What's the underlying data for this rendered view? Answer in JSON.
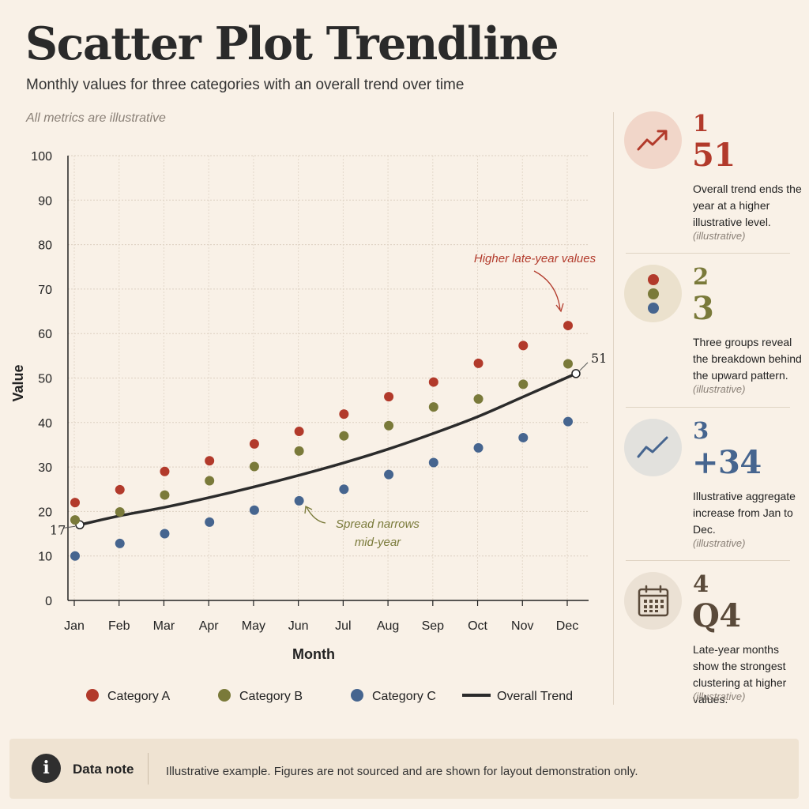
{
  "header": {
    "title": "Scatter Plot Trendline",
    "subtitle": "Monthly values for three categories with an overall trend over time",
    "note": "All metrics are illustrative"
  },
  "chart_data": {
    "type": "scatter",
    "xlabel": "Month",
    "ylabel": "Value",
    "categories": [
      "Jan",
      "Feb",
      "Mar",
      "Apr",
      "May",
      "Jun",
      "Jul",
      "Aug",
      "Sep",
      "Oct",
      "Nov",
      "Dec"
    ],
    "ylim": [
      0,
      100
    ],
    "yticks": [
      "0",
      "10",
      "20",
      "30",
      "40",
      "50",
      "60",
      "70",
      "80",
      "90",
      "100"
    ],
    "grid": true,
    "legend_position": "bottom",
    "series": [
      {
        "name": "Category A",
        "kind": "points",
        "color": "#b23a2b",
        "values": [
          22,
          24.9,
          29,
          31.4,
          35.2,
          38,
          41.9,
          45.8,
          49.1,
          53.3,
          57.3,
          61.8
        ]
      },
      {
        "name": "Category B",
        "kind": "points",
        "color": "#7a7a3a",
        "values": [
          18.1,
          19.9,
          23.7,
          26.9,
          30.1,
          33.6,
          37,
          39.3,
          43.5,
          45.3,
          48.6,
          53.2
        ]
      },
      {
        "name": "Category C",
        "kind": "points",
        "color": "#46658f",
        "values": [
          10,
          12.8,
          15,
          17.6,
          20.3,
          22.4,
          25,
          28.3,
          31,
          34.3,
          36.6,
          40.2
        ]
      },
      {
        "name": "Overall Trend",
        "kind": "line",
        "color": "#2b2b2b",
        "values": [
          17,
          19,
          20.9,
          23.1,
          25.5,
          28.1,
          30.9,
          34,
          37.5,
          41.3,
          45.7,
          51
        ]
      }
    ],
    "endpoint_labels": {
      "start": "17",
      "end": "51"
    },
    "annotations": [
      {
        "text": "Higher late-year values",
        "color": "#b23a2b"
      },
      {
        "text_lines": [
          "Spread narrows",
          "mid-year"
        ],
        "color": "#7a7a3a"
      }
    ]
  },
  "colors": {
    "category_a": "#b23a2b",
    "category_b": "#7a7a3a",
    "category_c": "#46658f",
    "trend": "#2b2b2b",
    "background": "#f9f1e7"
  },
  "sidebar": {
    "cards": [
      {
        "number": "1",
        "value": "51",
        "description": "Overall trend ends the year at a higher illustrative level.",
        "tag": "(illustrative)",
        "icon": "trend-up-arrow-icon",
        "color": "#b23a2b"
      },
      {
        "number": "2",
        "value": "3",
        "description": "Three groups reveal the breakdown behind the upward pattern.",
        "tag": "(illustrative)",
        "icon": "three-dots-icon",
        "color": "#7a7a3a"
      },
      {
        "number": "3",
        "value": "+34",
        "description": "Illustrative aggregate increase from Jan to Dec.",
        "tag": "(illustrative)",
        "icon": "trend-line-icon",
        "color": "#46658f"
      },
      {
        "number": "4",
        "value": "Q4",
        "description": "Late-year months show the strongest clustering at higher values.",
        "tag": "(illustrative)",
        "icon": "calendar-icon",
        "color": "#5a4a3a"
      }
    ]
  },
  "footer": {
    "icon": "info-icon",
    "label": "Data note",
    "text": "Illustrative example. Figures are not sourced and are shown for layout demonstration only."
  }
}
